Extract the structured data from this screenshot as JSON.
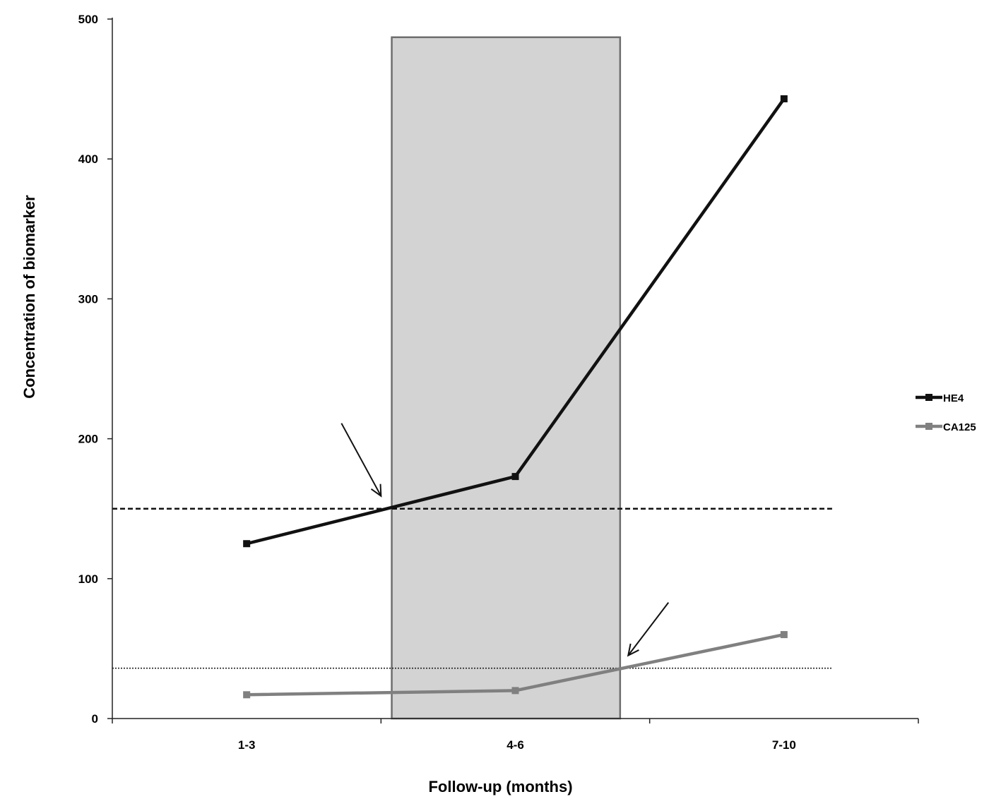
{
  "chart_data": {
    "type": "line",
    "categories": [
      "1-3",
      "4-6",
      "7-10"
    ],
    "xlabel": "Follow-up (months)",
    "ylabel": "Concentration of biomarker",
    "ylim": [
      0,
      500
    ],
    "yticks": [
      0,
      100,
      200,
      300,
      400,
      500
    ],
    "grid": false,
    "legend_position": "right",
    "series": [
      {
        "name": "HE4",
        "values": [
          125,
          173,
          443
        ],
        "color": "#111111"
      },
      {
        "name": "CA125",
        "values": [
          17,
          20,
          60
        ],
        "color": "#808080"
      }
    ],
    "thresholds": [
      {
        "value": 150,
        "style": "dashed",
        "color": "#111111"
      },
      {
        "value": 36,
        "style": "dotted",
        "color": "#222222"
      }
    ],
    "shaded_band": {
      "x_start": 1.54,
      "x_end": 2.39,
      "y_top": 487,
      "color": "#d3d3d3"
    },
    "annotations": [
      {
        "type": "arrow",
        "target": {
          "x": 1.5,
          "y": 150
        }
      },
      {
        "type": "arrow",
        "target": {
          "x": 2.42,
          "y": 36
        }
      }
    ]
  }
}
